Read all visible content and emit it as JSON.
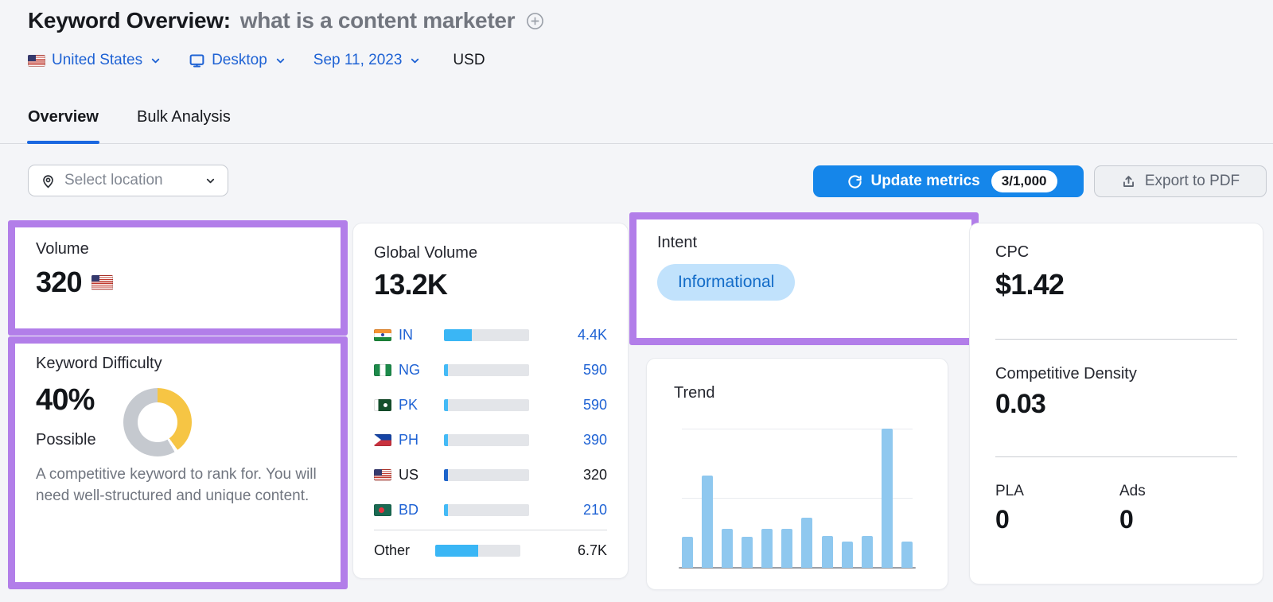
{
  "header": {
    "title": "Keyword Overview:",
    "keyword": "what is a content marketer",
    "filters": {
      "database": "United States",
      "device": "Desktop",
      "date": "Sep 11, 2023",
      "currency": "USD"
    }
  },
  "tabs": {
    "overview": "Overview",
    "bulk_analysis": "Bulk Analysis"
  },
  "toolbar": {
    "select_location": "Select location",
    "update_metrics": "Update metrics",
    "update_metrics_quota": "3/1,000",
    "export_pdf": "Export to PDF"
  },
  "cards": {
    "volume": {
      "title": "Volume",
      "value": "320"
    },
    "keyword_difficulty": {
      "title": "Keyword Difficulty",
      "value": "40%",
      "level": "Possible",
      "description": "A competitive keyword to rank for. You will need well-structured and unique content."
    },
    "global_volume": {
      "title": "Global Volume",
      "value": "13.2K"
    },
    "intent": {
      "title": "Intent",
      "badge": "Informational"
    },
    "trend": {
      "title": "Trend"
    },
    "cpc": {
      "title": "CPC",
      "value": "$1.42"
    },
    "competitive_density": {
      "title": "Competitive Density",
      "value": "0.03"
    },
    "pla": {
      "title": "PLA",
      "value": "0"
    },
    "ads": {
      "title": "Ads",
      "value": "0"
    }
  },
  "colors": {
    "link_blue": "#1e62d4",
    "button_blue": "#1586ea",
    "annotation_purple": "#b27ee9",
    "donut_yellow": "#f6c544",
    "donut_gray": "#c5c9cf",
    "trend_bar_blue": "#8fc8ef",
    "intent_badge_bg": "#c1e2fc",
    "intent_badge_text": "#136cc8",
    "bar_fill_light_blue": "#44baf6",
    "bar_fill_dark_blue": "#1d64cb",
    "bar_fill_bright_blue": "#3ab6f5"
  },
  "chart_data": [
    {
      "type": "pie",
      "title": "Keyword Difficulty",
      "labels": [
        "difficulty",
        "remaining"
      ],
      "values": [
        40,
        60
      ],
      "colors": [
        "#f6c544",
        "#c5c9cf"
      ],
      "center_label": "40%",
      "note": "donut; yellow segment starts at 12 o'clock, clockwise, small white gap at segment end"
    },
    {
      "type": "bar",
      "title": "Global Volume by country",
      "orientation": "horizontal",
      "categories": [
        "IN",
        "NG",
        "PK",
        "PH",
        "US",
        "BD",
        "Other"
      ],
      "values": [
        "4.4K",
        "590",
        "590",
        "390",
        "320",
        "210",
        "6.7K"
      ],
      "fill_fractions": [
        0.33,
        0.05,
        0.05,
        0.04,
        0.05,
        0.04,
        0.5
      ],
      "rows": [
        {
          "code": "IN",
          "flag": "in",
          "value": "4.4K",
          "fill": 0.33,
          "style": "link"
        },
        {
          "code": "NG",
          "flag": "ng",
          "value": "590",
          "fill": 0.05,
          "style": "link"
        },
        {
          "code": "PK",
          "flag": "pk",
          "value": "590",
          "fill": 0.05,
          "style": "link"
        },
        {
          "code": "PH",
          "flag": "ph",
          "value": "390",
          "fill": 0.04,
          "style": "link"
        },
        {
          "code": "US",
          "flag": "us",
          "value": "320",
          "fill": 0.05,
          "style": "current"
        },
        {
          "code": "BD",
          "flag": "bd",
          "value": "210",
          "fill": 0.04,
          "style": "link"
        },
        {
          "code": "Other",
          "flag": null,
          "value": "6.7K",
          "fill": 0.5,
          "style": "other"
        }
      ]
    },
    {
      "type": "bar",
      "title": "Trend",
      "x": [
        1,
        2,
        3,
        4,
        5,
        6,
        7,
        8,
        9,
        10,
        11,
        12
      ],
      "values_normalized": [
        0.22,
        0.66,
        0.28,
        0.22,
        0.28,
        0.28,
        0.36,
        0.23,
        0.19,
        0.23,
        1.0,
        0.19
      ],
      "ylim": [
        0,
        1
      ],
      "gridlines": [
        0.5,
        1.0
      ],
      "legend": "off"
    }
  ]
}
